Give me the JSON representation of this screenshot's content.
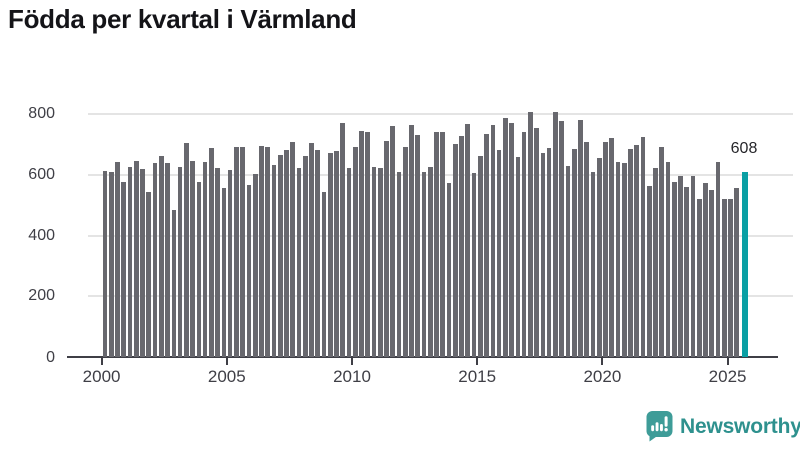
{
  "title": "Födda per kvartal i Värmland",
  "annotation": {
    "last_value_label": "608"
  },
  "logo": {
    "text": "Newsworthy",
    "icon": "newsworthy-chart-bubble-icon"
  },
  "colors": {
    "bar": "#68686e",
    "highlight": "#0a9fa4",
    "axis": "#3f3f46",
    "grid": "#e4e4e4",
    "title": "#141418",
    "brand": "#2e918e"
  },
  "chart_data": {
    "type": "bar",
    "title": "Födda per kvartal i Värmland",
    "xlabel": "",
    "ylabel": "",
    "x_start_year": 2000,
    "periods_per_year": 4,
    "x_tick_years": [
      2000,
      2005,
      2010,
      2015,
      2020,
      2025
    ],
    "x_tick_labels": [
      "2000",
      "2005",
      "2010",
      "2015",
      "2020",
      "2025"
    ],
    "y_ticks": [
      0,
      200,
      400,
      600,
      800
    ],
    "y_tick_labels": [
      "0",
      "200",
      "400",
      "600",
      "800"
    ],
    "ylim": [
      0,
      840
    ],
    "grid": "horizontal",
    "legend": "none",
    "series": [
      {
        "name": "Födda per kvartal",
        "values": [
          613,
          610,
          643,
          575,
          627,
          646,
          619,
          542,
          639,
          663,
          639,
          484,
          624,
          706,
          646,
          577,
          641,
          687,
          622,
          555,
          615,
          692,
          690,
          566,
          601,
          695,
          692,
          632,
          666,
          682,
          709,
          621,
          663,
          706,
          682,
          544,
          670,
          679,
          770,
          623,
          690,
          745,
          740,
          624,
          623,
          712,
          759,
          610,
          690,
          764,
          731,
          610,
          624,
          742,
          742,
          573,
          701,
          727,
          767,
          606,
          663,
          734,
          764,
          680,
          787,
          772,
          660,
          740,
          806,
          754,
          672,
          687,
          805,
          778,
          630,
          685,
          780,
          709,
          610,
          654,
          709,
          720,
          643,
          640,
          685,
          698,
          723,
          562,
          621,
          690,
          641,
          577,
          595,
          559,
          596,
          520,
          573,
          550,
          643,
          520,
          521,
          555,
          608
        ]
      }
    ],
    "highlight_last_bar": true,
    "highlight_last_value": 608
  }
}
